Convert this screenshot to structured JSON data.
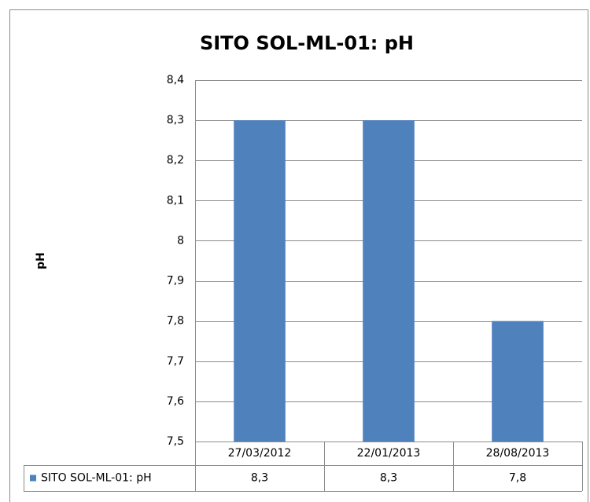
{
  "chart_data": {
    "type": "bar",
    "title": "SITO SOL-ML-01: pH",
    "y_label": "pH",
    "categories": [
      "27/03/2012",
      "22/01/2013",
      "28/08/2013"
    ],
    "series": [
      {
        "name": "SITO SOL-ML-01: pH",
        "color": "#4f81bd",
        "values": [
          8.3,
          8.3,
          7.8
        ],
        "value_labels": [
          "8,3",
          "8,3",
          "7,8"
        ]
      }
    ],
    "ylim": [
      7.5,
      8.4
    ],
    "yticks": [
      {
        "value": 7.5,
        "label": "7,5"
      },
      {
        "value": 7.6,
        "label": "7,6"
      },
      {
        "value": 7.7,
        "label": "7,7"
      },
      {
        "value": 7.8,
        "label": "7,8"
      },
      {
        "value": 7.9,
        "label": "7,9"
      },
      8,
      {
        "value": 8.1,
        "label": "8,1"
      },
      {
        "value": 8.2,
        "label": "8,2"
      },
      {
        "value": 8.3,
        "label": "8,3"
      },
      {
        "value": 8.4,
        "label": "8,4"
      }
    ],
    "grid": true,
    "data_table": true
  }
}
